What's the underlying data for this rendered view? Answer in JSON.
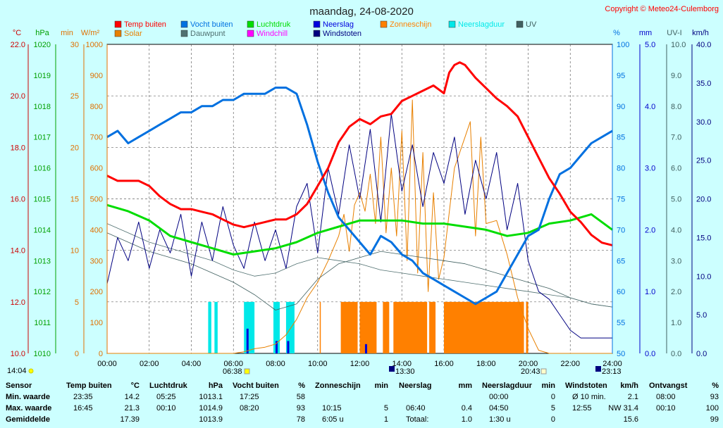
{
  "title": "maandag, 24-08-2020",
  "copyright": "Copyright © Meteo24-Culemborg",
  "left_units": [
    "°C",
    "hPa",
    "min",
    "W/m²"
  ],
  "right_units": [
    "%",
    "mm",
    "UV-I",
    "km/h"
  ],
  "sunrise": "06:38",
  "sunset": "20:43",
  "day_start": "14:04",
  "moonrise": "13:30",
  "moonset": "23:13",
  "colors": {
    "temp": "#ff0000",
    "humidity": "#0070e0",
    "pressure": "#00dd00",
    "rain": "#0000dd",
    "sunshine": "#ff8000",
    "rainduration": "#00e8e8",
    "uv": "#406060",
    "solar": "#e88000",
    "dewpoint": "#507070",
    "windchill": "#ff00ff",
    "gusts": "#000080"
  },
  "chart_data": {
    "type": "line",
    "title": "maandag, 24-08-2020",
    "x_ticks": [
      "00:00",
      "02:00",
      "04:00",
      "06:00",
      "08:00",
      "10:00",
      "12:00",
      "14:00",
      "16:00",
      "18:00",
      "20:00",
      "22:00",
      "24:00"
    ],
    "axes": {
      "temp": {
        "label": "°C",
        "ticks": [
          "22.0",
          "20.0",
          "18.0",
          "16.0",
          "14.0",
          "12.0",
          "10.0"
        ],
        "range": [
          10,
          22
        ]
      },
      "pressure": {
        "label": "hPa",
        "ticks": [
          "1020",
          "1019",
          "1018",
          "1017",
          "1016",
          "1015",
          "1014",
          "1013",
          "1012",
          "1011",
          "1010"
        ],
        "range": [
          1010,
          1020
        ]
      },
      "minutes": {
        "label": "min",
        "ticks": [
          "30",
          "25",
          "20",
          "15",
          "10",
          "5",
          "0"
        ],
        "range": [
          0,
          30
        ]
      },
      "solar": {
        "label": "W/m²",
        "ticks": [
          "1000",
          "900",
          "800",
          "700",
          "600",
          "500",
          "400",
          "300",
          "200",
          "100",
          "0"
        ],
        "range": [
          0,
          1000
        ]
      },
      "humidity": {
        "label": "%",
        "ticks": [
          "100",
          "95",
          "90",
          "85",
          "80",
          "75",
          "70",
          "65",
          "60",
          "55",
          "50"
        ],
        "range": [
          50,
          100
        ]
      },
      "rain": {
        "label": "mm",
        "ticks": [
          "5.0",
          "4.0",
          "3.0",
          "2.0",
          "1.0",
          "0.0"
        ],
        "range": [
          0,
          5
        ]
      },
      "uv": {
        "label": "UV-I",
        "ticks": [
          "10.0",
          "9.0",
          "8.0",
          "7.0",
          "6.0",
          "5.0",
          "4.0",
          "3.0",
          "2.0",
          "1.0",
          "0.0"
        ],
        "range": [
          0,
          10
        ]
      },
      "wind": {
        "label": "km/h",
        "ticks": [
          "40.0",
          "35.0",
          "30.0",
          "25.0",
          "20.0",
          "15.0",
          "10.0",
          "5.0",
          "0.0"
        ],
        "range": [
          0,
          40
        ]
      }
    },
    "legend": [
      {
        "name": "Temp buiten",
        "color": "#ff0000"
      },
      {
        "name": "Vocht buiten",
        "color": "#0070e0"
      },
      {
        "name": "Luchtdruk",
        "color": "#00dd00"
      },
      {
        "name": "Neerslag",
        "color": "#0000dd"
      },
      {
        "name": "Zonneschijn",
        "color": "#ff8000"
      },
      {
        "name": "Neerslagduur",
        "color": "#00e8e8"
      },
      {
        "name": "UV",
        "color": "#406060"
      },
      {
        "name": "Solar",
        "color": "#e88000"
      },
      {
        "name": "Dauwpunt",
        "color": "#507070"
      },
      {
        "name": "Windchill",
        "color": "#ff00ff"
      },
      {
        "name": "Windstoten",
        "color": "#000080"
      }
    ],
    "series": [
      {
        "name": "Temp buiten",
        "axis": "temp",
        "color": "#ff0000",
        "x": [
          0,
          0.5,
          1,
          1.5,
          2,
          2.5,
          3,
          3.5,
          4,
          4.5,
          5,
          5.5,
          6,
          6.5,
          7,
          7.5,
          8,
          8.5,
          9,
          9.5,
          10,
          10.5,
          11,
          11.5,
          12,
          12.5,
          13,
          13.5,
          14,
          14.5,
          15,
          15.5,
          16,
          16.25,
          16.5,
          16.75,
          17,
          17.5,
          18,
          18.5,
          19,
          19.5,
          20,
          20.5,
          21,
          21.5,
          22,
          22.5,
          23,
          23.5,
          24
        ],
        "y": [
          16.9,
          16.7,
          16.7,
          16.7,
          16.5,
          16.1,
          15.8,
          15.6,
          15.6,
          15.5,
          15.4,
          15.2,
          15.0,
          14.9,
          15.0,
          15.1,
          15.2,
          15.2,
          15.4,
          15.8,
          16.5,
          17.2,
          18.2,
          18.8,
          19.1,
          18.9,
          19.2,
          19.3,
          19.8,
          20.0,
          20.2,
          20.4,
          20.1,
          20.9,
          21.2,
          21.3,
          21.2,
          20.7,
          20.3,
          19.9,
          19.6,
          19.2,
          18.4,
          17.6,
          16.8,
          16.2,
          15.5,
          15.1,
          14.6,
          14.3,
          14.2
        ]
      },
      {
        "name": "Vocht buiten",
        "axis": "humidity",
        "color": "#0070e0",
        "x": [
          0,
          0.5,
          1,
          1.5,
          2,
          2.5,
          3,
          3.5,
          4,
          4.5,
          5,
          5.5,
          6,
          6.5,
          7,
          7.5,
          8,
          8.5,
          9,
          9.5,
          10,
          10.5,
          11,
          11.5,
          12,
          12.5,
          13,
          13.5,
          14,
          14.5,
          15,
          15.5,
          16,
          16.5,
          17,
          17.5,
          18,
          18.5,
          19,
          19.5,
          20,
          20.5,
          21,
          21.5,
          22,
          22.5,
          23,
          23.5,
          24
        ],
        "y": [
          85,
          86,
          84,
          85,
          86,
          87,
          88,
          89,
          89,
          90,
          90,
          91,
          91,
          92,
          92,
          92,
          93,
          93,
          92,
          87,
          81,
          76,
          72,
          70,
          68,
          66,
          69,
          68,
          66,
          65,
          63,
          62,
          61,
          60,
          59,
          58,
          59,
          60,
          63,
          66,
          69,
          70,
          75,
          79,
          80,
          82,
          84,
          85,
          86
        ]
      },
      {
        "name": "Luchtdruk",
        "axis": "pressure",
        "color": "#00dd00",
        "x": [
          0,
          1,
          2,
          3,
          4,
          5,
          6,
          7,
          8,
          9,
          10,
          11,
          12,
          13,
          14,
          15,
          16,
          17,
          18,
          19,
          20,
          21,
          22,
          23,
          24
        ],
        "y": [
          1014.8,
          1014.6,
          1014.3,
          1013.8,
          1013.6,
          1013.4,
          1013.2,
          1013.3,
          1013.4,
          1013.6,
          1013.9,
          1014.1,
          1014.3,
          1014.3,
          1014.3,
          1014.2,
          1014.2,
          1014.1,
          1014.0,
          1013.8,
          1013.9,
          1014.2,
          1014.3,
          1014.5,
          1014.0
        ]
      },
      {
        "name": "UV",
        "axis": "uv",
        "color": "#406060",
        "x": [
          0,
          1,
          2,
          3,
          4,
          5,
          6,
          7,
          8,
          9,
          10,
          11,
          12,
          13,
          14,
          15,
          16,
          17,
          18,
          19,
          20,
          21,
          22,
          23,
          24
        ],
        "y": [
          3.9,
          3.6,
          3.3,
          3.1,
          2.9,
          2.6,
          2.3,
          1.9,
          1.4,
          1.6,
          2.4,
          2.9,
          3.1,
          3.3,
          3.2,
          3.1,
          3.0,
          2.9,
          2.7,
          2.5,
          2.3,
          2.1,
          1.8,
          1.6,
          1.5
        ]
      },
      {
        "name": "Dauwpunt",
        "axis": "uv",
        "color": "#507070",
        "x": [
          0,
          1,
          2,
          3,
          4,
          5,
          6,
          7,
          8,
          9,
          10,
          11,
          12,
          13,
          14,
          15,
          16,
          17,
          18,
          19,
          20,
          21,
          22,
          23,
          24
        ],
        "y": [
          4.2,
          3.9,
          3.6,
          3.4,
          3.2,
          3.0,
          2.7,
          2.5,
          2.6,
          2.9,
          3.1,
          3.0,
          2.9,
          2.7,
          2.6,
          2.5,
          2.4,
          2.3,
          2.2,
          2.1,
          2.0,
          1.9,
          1.8,
          1.6,
          1.5
        ]
      },
      {
        "name": "Windstoten",
        "axis": "wind",
        "color": "#000080",
        "x": [
          0,
          0.5,
          1,
          1.5,
          2,
          2.5,
          3,
          3.5,
          4,
          4.5,
          5,
          5.5,
          6,
          6.5,
          7,
          7.5,
          8,
          8.5,
          9,
          9.5,
          10,
          10.5,
          11,
          11.5,
          12,
          12.5,
          13,
          13.5,
          14,
          14.5,
          15,
          15.5,
          16,
          16.5,
          17,
          17.5,
          18,
          18.5,
          19,
          19.5,
          20,
          20.5,
          21,
          21.5,
          22,
          22.5,
          23,
          23.5,
          24
        ],
        "y": [
          9,
          15,
          12,
          17,
          11,
          16,
          13,
          18,
          10,
          17,
          12,
          19,
          14,
          11,
          17,
          12,
          16,
          11,
          19,
          22,
          13,
          24,
          18,
          27,
          20,
          29,
          17,
          31,
          21,
          27,
          19,
          26,
          22,
          28,
          18,
          25,
          20,
          26,
          16,
          22,
          12,
          8,
          7,
          5,
          3,
          2,
          2,
          2,
          2
        ]
      },
      {
        "name": "Solar",
        "axis": "solar",
        "color": "#e88000",
        "x": [
          0,
          6,
          6.5,
          7,
          7.5,
          8,
          8.5,
          9,
          9.5,
          10,
          10.5,
          11,
          11.25,
          11.5,
          11.75,
          12,
          12.25,
          12.5,
          12.75,
          13,
          13.25,
          13.5,
          13.75,
          14,
          14.25,
          14.5,
          14.75,
          15,
          15.25,
          15.5,
          15.75,
          16,
          16.5,
          17,
          17.25,
          17.5,
          17.75,
          18,
          18.5,
          19,
          19.5,
          20,
          20.5,
          21,
          24
        ],
        "y": [
          0,
          0,
          5,
          15,
          20,
          30,
          60,
          110,
          180,
          230,
          300,
          380,
          450,
          330,
          480,
          520,
          460,
          580,
          420,
          700,
          390,
          600,
          380,
          720,
          300,
          820,
          260,
          650,
          200,
          520,
          240,
          310,
          600,
          700,
          750,
          380,
          700,
          420,
          430,
          320,
          180,
          80,
          10,
          0,
          0
        ]
      }
    ],
    "bars": [
      {
        "name": "Zonneschijn",
        "axis": "minutes",
        "color": "#ff8000",
        "intervals": [
          [
            10.1,
            10.15
          ],
          [
            11.1,
            11.9
          ],
          [
            12.0,
            12.8
          ],
          [
            13.1,
            13.4
          ],
          [
            13.6,
            15.2
          ],
          [
            15.3,
            15.6
          ],
          [
            16.0,
            19.8
          ],
          [
            19.9,
            20.0
          ]
        ],
        "value": 5
      },
      {
        "name": "Neerslagduur",
        "axis": "minutes",
        "color": "#00e8e8",
        "intervals": [
          [
            4.8,
            4.95
          ],
          [
            5.1,
            5.25
          ],
          [
            6.5,
            7.0
          ],
          [
            7.9,
            8.2
          ],
          [
            8.5,
            8.9
          ]
        ],
        "value": 5
      },
      {
        "name": "Neerslag",
        "axis": "rain",
        "color": "#0000dd",
        "x": [
          6.67,
          8.05,
          8.6,
          12.3
        ],
        "y": [
          0.4,
          0.2,
          0.2,
          0.15
        ]
      }
    ]
  },
  "stats": {
    "headers": [
      {
        "title": "Sensor",
        "unit": ""
      },
      {
        "title": "Temp buiten",
        "unit": "°C"
      },
      {
        "title": "Luchtdruk",
        "unit": "hPa"
      },
      {
        "title": "Vocht buiten",
        "unit": "%"
      },
      {
        "title": "Zonneschijn",
        "unit": "min"
      },
      {
        "title": "Neerslag",
        "unit": "mm"
      },
      {
        "title": "Neerslagduur",
        "unit": "min"
      },
      {
        "title": "Windstoten",
        "unit": "km/h"
      },
      {
        "title": "Ontvangst",
        "unit": "%"
      }
    ],
    "rows": [
      {
        "label": "Min. waarde",
        "cells": [
          [
            "23:35",
            "14.2"
          ],
          [
            "05:25",
            "1013.1"
          ],
          [
            "17:25",
            "58"
          ],
          [
            "",
            ""
          ],
          [
            "",
            ""
          ],
          [
            "00:00",
            "0"
          ],
          [
            "Ø 10 min.",
            "2.1"
          ],
          [
            "08:00",
            "93"
          ]
        ]
      },
      {
        "label": "Max. waarde",
        "cells": [
          [
            "16:45",
            "21.3"
          ],
          [
            "00:10",
            "1014.9"
          ],
          [
            "08:20",
            "93"
          ],
          [
            "10:15",
            "5"
          ],
          [
            "06:40",
            "0.4"
          ],
          [
            "04:50",
            "5"
          ],
          [
            "12:55",
            "NW 31.4"
          ],
          [
            "00:10",
            "100"
          ]
        ]
      },
      {
        "label": "Gemiddelde",
        "cells": [
          [
            "",
            "17.39"
          ],
          [
            "",
            "1013.9"
          ],
          [
            "",
            "78"
          ],
          [
            "6:05 u",
            "1"
          ],
          [
            "Totaal:",
            "1.0"
          ],
          [
            "1:30 u",
            "0"
          ],
          [
            "",
            "15.6"
          ],
          [
            "",
            "99"
          ]
        ]
      }
    ]
  }
}
